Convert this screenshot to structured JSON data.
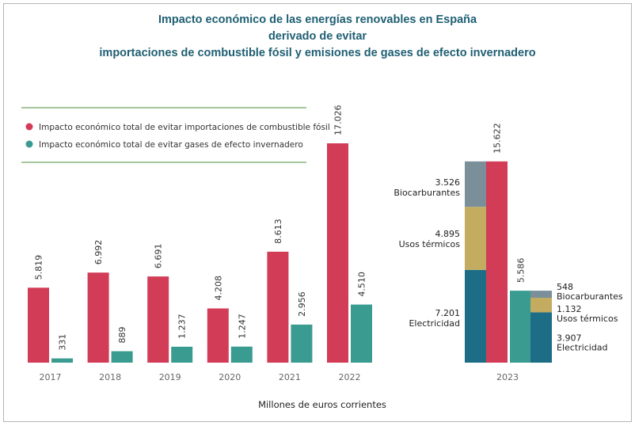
{
  "colors": {
    "fossil": "#d23c57",
    "emissions": "#3a9c90",
    "biocarburantes": "#7b8f9b",
    "usos_termicos": "#c3ac60",
    "electricidad": "#1d6d86",
    "title": "#1f5f73",
    "legend_rule": "#4c8f3c"
  },
  "chart_data": {
    "type": "bar",
    "title_lines": [
      "Impacto económico de las energías renovables en España",
      "derivado de evitar",
      "importaciones de combustible fósil y emisiones de gases de efecto invernadero"
    ],
    "xlabel": "Millones de euros corrientes",
    "ylabel": "",
    "ylim": [
      0,
      17026
    ],
    "grid": false,
    "legend_position": "top-left",
    "legend": [
      "Impacto económico total de evitar importaciones de combustible fósil",
      "Impacto económico total de evitar gases de efecto invernadero"
    ],
    "categories": [
      "2017",
      "2018",
      "2019",
      "2020",
      "2021",
      "2022"
    ],
    "series": [
      {
        "name": "Impacto económico total de evitar importaciones de combustible fósil",
        "values": [
          5819,
          6992,
          6691,
          4208,
          8613,
          17026
        ],
        "labels": [
          "5.819",
          "6.992",
          "6.691",
          "4.208",
          "8.613",
          "17.026"
        ]
      },
      {
        "name": "Impacto económico total de evitar gases de efecto invernadero",
        "values": [
          331,
          889,
          1237,
          1247,
          2956,
          4510
        ],
        "labels": [
          "331",
          "889",
          "1.237",
          "1.247",
          "2.956",
          "4.510"
        ]
      }
    ],
    "breakdown_2023": {
      "category": "2023",
      "fossil_total": {
        "value": 15622,
        "label": "15.622"
      },
      "fossil_breakdown": [
        {
          "name": "Electricidad",
          "value": 7201,
          "label": "7.201"
        },
        {
          "name": "Usos térmicos",
          "value": 4895,
          "label": "4.895"
        },
        {
          "name": "Biocarburantes",
          "value": 3526,
          "label": "3.526"
        }
      ],
      "emissions_total": {
        "value": 5586,
        "label": "5.586"
      },
      "emissions_breakdown": [
        {
          "name": "Electricidad",
          "value": 3907,
          "label": "3.907"
        },
        {
          "name": "Usos térmicos",
          "value": 1132,
          "label": "1.132"
        },
        {
          "name": "Biocarburantes",
          "value": 548,
          "label": "548"
        }
      ]
    }
  }
}
